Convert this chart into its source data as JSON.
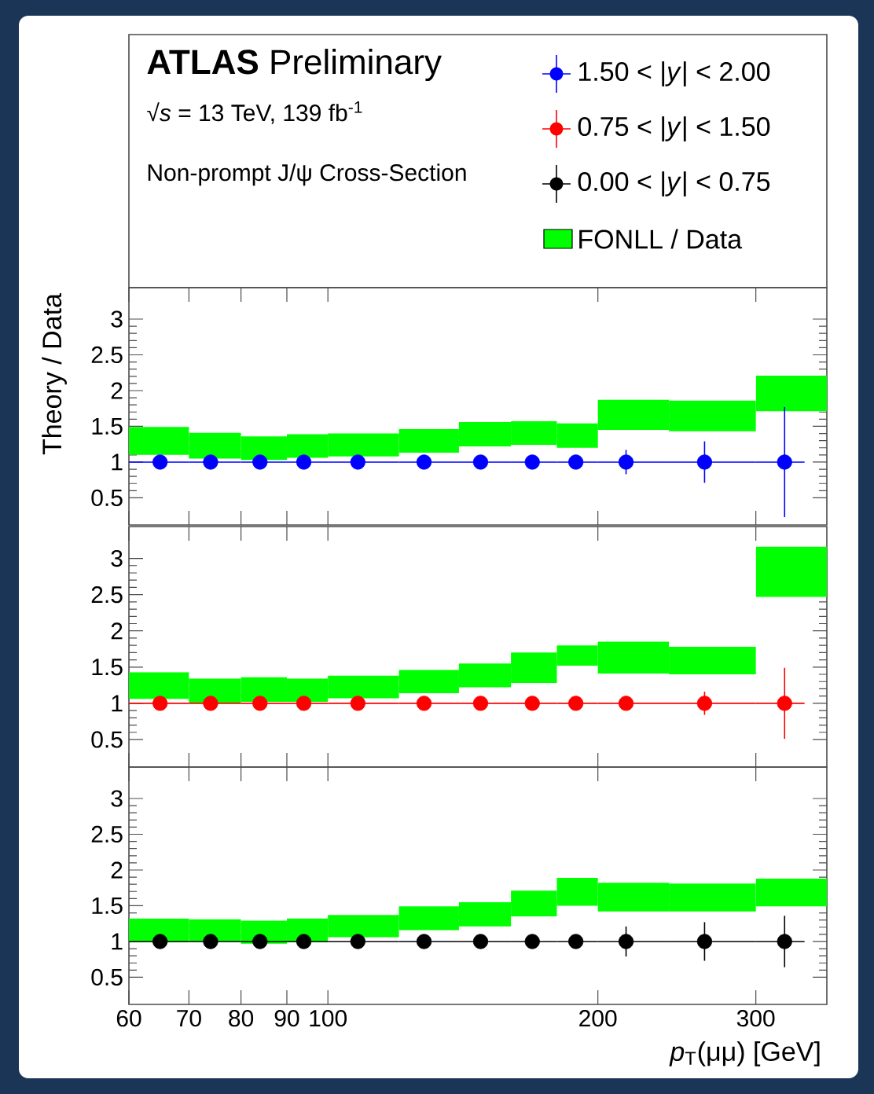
{
  "chart_data": [
    {
      "type": "scatter",
      "title": "**ATLAS** Preliminary",
      "subtitle": "√*s* = 13 TeV, 139 fb$^{-1}$",
      "annotations": [
        "Non-prompt J/ψ Cross-Section"
      ],
      "ylabel": "Theory / Data",
      "legend": "top right",
      "marker": "circle",
      "log": "x",
      "tick_labels": "y",
      "xlim": [
        60,
        360
      ],
      "ylim": [
        0.12,
        3.44
      ],
      "xticks": [
        60,
        70,
        80,
        90,
        100,
        200,
        300
      ],
      "yticks": [
        0.5,
        1,
        1.5,
        2,
        2.5,
        3
      ],
      "series": [
        {
          "name": "FONLL / Data",
          "type": "histogram",
          "color": "#00ff00",
          "bins": [
            60,
            70,
            80,
            90,
            100,
            120,
            140,
            160,
            180,
            200,
            240,
            300,
            360
          ],
          "base": [
            1.1,
            1.05,
            1.03,
            1.06,
            1.08,
            1.13,
            1.22,
            1.24,
            1.2,
            1.45,
            1.43,
            1.71
          ],
          "values": [
            0.39,
            0.36,
            0.33,
            0.33,
            0.32,
            0.33,
            0.34,
            0.33,
            0.34,
            0.42,
            0.43,
            0.5
          ]
        },
        {
          "name": "1.50 < |*y*| < 2.00",
          "color": "#0000ff",
          "x": [
            65,
            74,
            84,
            94,
            108,
            128,
            148,
            169,
            189,
            215,
            263,
            323
          ],
          "values": [
            1,
            1,
            1,
            1,
            1,
            1,
            1,
            1,
            1,
            1,
            1,
            1
          ],
          "errors": [
            null,
            null,
            null,
            null,
            null,
            null,
            null,
            null,
            0.1,
            0.17,
            0.29,
            0.77
          ],
          "xerrors": [
            [
              60,
              70
            ],
            [
              70,
              80
            ],
            [
              80,
              90
            ],
            [
              90,
              100
            ],
            [
              100,
              120
            ],
            [
              120,
              140
            ],
            [
              140,
              160
            ],
            [
              160,
              180
            ],
            [
              180,
              200
            ],
            [
              200,
              240
            ],
            [
              240,
              300
            ],
            [
              300,
              340
            ]
          ]
        }
      ]
    },
    {
      "type": "scatter",
      "marker": "circle",
      "log": "x",
      "tick_labels": "y",
      "xlim": [
        60,
        360
      ],
      "ylim": [
        0.12,
        3.44
      ],
      "xticks": [
        60,
        70,
        80,
        90,
        100,
        200,
        300
      ],
      "yticks": [
        0.5,
        1,
        1.5,
        2,
        2.5,
        3
      ],
      "series": [
        {
          "type": "histogram",
          "color": "#00ff00",
          "bins": [
            60,
            70,
            80,
            90,
            100,
            120,
            140,
            160,
            180,
            200,
            240,
            300,
            360
          ],
          "base": [
            1.06,
            1.0,
            1.02,
            1.02,
            1.07,
            1.14,
            1.22,
            1.28,
            1.52,
            1.41,
            1.4,
            2.47
          ],
          "values": [
            0.37,
            0.34,
            0.34,
            0.32,
            0.31,
            0.32,
            0.33,
            0.42,
            0.28,
            0.44,
            0.38,
            0.69
          ]
        },
        {
          "name": "0.75 < |*y*| < 1.50",
          "color": "#ff0000",
          "x": [
            65,
            74,
            84,
            94,
            108,
            128,
            148,
            169,
            189,
            215,
            263,
            323
          ],
          "values": [
            1,
            1,
            1,
            1,
            1,
            1,
            1,
            1,
            1,
            1,
            1,
            1
          ],
          "errors": [
            null,
            null,
            null,
            null,
            null,
            null,
            null,
            null,
            null,
            0.1,
            0.16,
            0.49
          ],
          "xerrors": [
            [
              60,
              70
            ],
            [
              70,
              80
            ],
            [
              80,
              90
            ],
            [
              90,
              100
            ],
            [
              100,
              120
            ],
            [
              120,
              140
            ],
            [
              140,
              160
            ],
            [
              160,
              180
            ],
            [
              180,
              200
            ],
            [
              200,
              240
            ],
            [
              240,
              300
            ],
            [
              300,
              340
            ]
          ]
        }
      ]
    },
    {
      "type": "scatter",
      "xlabel": "*p*$_{T}$(μμ) [GeV]",
      "marker": "circle",
      "log": "x",
      "xlim": [
        60,
        360
      ],
      "ylim": [
        0.12,
        3.44
      ],
      "xticks": [
        60,
        70,
        80,
        90,
        100,
        200,
        300
      ],
      "yticks": [
        0.5,
        1,
        1.5,
        2,
        2.5,
        3
      ],
      "series": [
        {
          "type": "histogram",
          "color": "#00ff00",
          "bins": [
            60,
            70,
            80,
            90,
            100,
            120,
            140,
            160,
            180,
            200,
            240,
            300,
            360
          ],
          "base": [
            0.99,
            1.0,
            0.97,
            0.99,
            1.06,
            1.16,
            1.21,
            1.35,
            1.5,
            1.42,
            1.42,
            1.49
          ],
          "values": [
            0.33,
            0.31,
            0.32,
            0.33,
            0.31,
            0.33,
            0.34,
            0.36,
            0.39,
            0.4,
            0.39,
            0.39
          ]
        },
        {
          "name": "0.00 < |*y*| < 0.75",
          "color": "#000000",
          "x": [
            65,
            74,
            84,
            94,
            108,
            128,
            148,
            169,
            189,
            215,
            263,
            323
          ],
          "values": [
            1,
            1,
            1,
            1,
            1,
            1,
            1,
            1,
            1,
            1,
            1,
            1
          ],
          "errors": [
            null,
            null,
            null,
            null,
            null,
            null,
            0.06,
            null,
            null,
            0.21,
            0.27,
            0.36
          ],
          "xerrors": [
            [
              60,
              70
            ],
            [
              70,
              80
            ],
            [
              80,
              90
            ],
            [
              90,
              100
            ],
            [
              100,
              120
            ],
            [
              120,
              140
            ],
            [
              140,
              160
            ],
            [
              160,
              180
            ],
            [
              180,
              200
            ],
            [
              200,
              240
            ],
            [
              240,
              300
            ],
            [
              300,
              340
            ]
          ]
        }
      ]
    }
  ]
}
